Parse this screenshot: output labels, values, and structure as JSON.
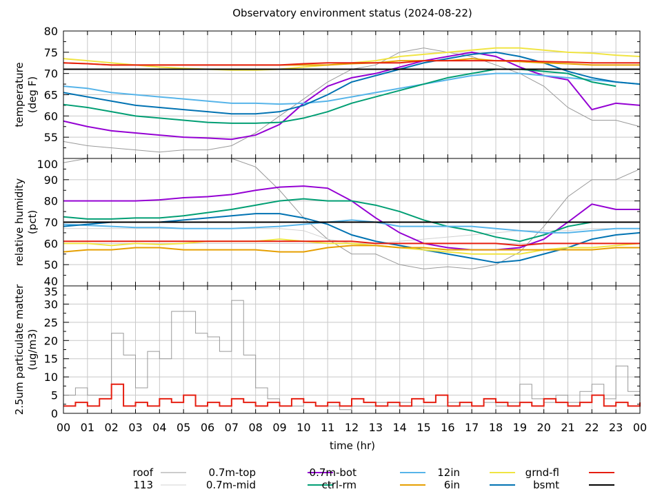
{
  "chart_data": [
    {
      "type": "line",
      "title": "Observatory environment status (2024-08-22)",
      "ylabel": [
        "temperature",
        "(deg F)"
      ],
      "ylim": [
        50,
        80
      ],
      "yticks": [
        55,
        60,
        65,
        70,
        75,
        80
      ],
      "x": [
        0,
        1,
        2,
        3,
        4,
        5,
        6,
        7,
        8,
        9,
        10,
        11,
        12,
        13,
        14,
        15,
        16,
        17,
        18,
        19,
        20,
        21,
        22,
        23,
        24
      ],
      "series": [
        {
          "name": "roof",
          "values": [
            54,
            53,
            52.5,
            52,
            51.5,
            52,
            52,
            53,
            56,
            60,
            64,
            68,
            71,
            72,
            75,
            76,
            75,
            74,
            72,
            70,
            67,
            62,
            59,
            59,
            57.5
          ]
        },
        {
          "name": "0.7m-top",
          "values": [
            58.8,
            57.5,
            56.5,
            56,
            55.5,
            55,
            54.8,
            54.5,
            55.5,
            58,
            63,
            67,
            69,
            70,
            71.5,
            73,
            74,
            75,
            74,
            71.5,
            69.5,
            68.5,
            61.5,
            63,
            62.5
          ]
        },
        {
          "name": "0.7m-bot",
          "values": [
            67,
            66.5,
            65.5,
            65,
            64.5,
            64,
            63.5,
            63,
            63,
            62.8,
            63,
            63.5,
            64.5,
            65.5,
            66.5,
            67.5,
            68.5,
            69.5,
            70,
            70,
            69.5,
            69,
            68.5,
            68,
            67.5
          ]
        },
        {
          "name": "0.7m-mid",
          "values": [
            62.7,
            62,
            61,
            60,
            59.5,
            59,
            58.5,
            58.3,
            58.3,
            58.5,
            59.5,
            61,
            63,
            64.5,
            66,
            67.5,
            69,
            70,
            71,
            71,
            70.5,
            70,
            68,
            67,
            null
          ]
        },
        {
          "name": "6in",
          "values": [
            65.5,
            64.5,
            63.5,
            62.5,
            62,
            61.5,
            61,
            60.5,
            60.5,
            61,
            62.5,
            65,
            68,
            69.5,
            71,
            72.5,
            73.5,
            74.5,
            75,
            74,
            72.5,
            70.5,
            69,
            68,
            67.5
          ]
        },
        {
          "name": "12in",
          "values": [
            73.5,
            73,
            72.5,
            72,
            71.5,
            71.2,
            71,
            70.8,
            70.8,
            71,
            71.5,
            72,
            72.5,
            73,
            74,
            74.5,
            75,
            75.5,
            76,
            76,
            75.5,
            75,
            74.8,
            74.3,
            74
          ]
        },
        {
          "name": "ctrl-rm",
          "values": [
            72.5,
            72.3,
            72,
            72,
            72,
            72,
            72,
            72,
            72,
            72,
            72,
            72,
            72.3,
            72.5,
            73,
            73,
            73,
            73.5,
            73,
            72.8,
            72.5,
            72.3,
            72,
            72,
            72
          ]
        },
        {
          "name": "grnd-fl",
          "values": [
            72.5,
            72.3,
            72,
            72,
            72,
            72,
            72,
            72,
            72,
            72,
            72.3,
            72.5,
            72.5,
            72.5,
            72.5,
            73,
            73,
            73,
            73,
            73,
            72.8,
            72.7,
            72.5,
            72.5,
            72.5
          ]
        },
        {
          "name": "bsmt",
          "values": [
            71,
            71,
            71,
            71,
            71,
            71,
            71,
            71,
            71,
            71,
            71,
            71,
            71,
            71,
            71,
            71,
            71,
            71,
            71,
            71,
            71,
            71,
            71,
            71,
            71
          ]
        }
      ]
    },
    {
      "type": "line",
      "ylabel": [
        "relative humidity",
        "(pct)"
      ],
      "ylim": [
        40,
        100
      ],
      "yticks": [
        40,
        50,
        60,
        70,
        80,
        90,
        100
      ],
      "x": [
        0,
        1,
        2,
        3,
        4,
        5,
        6,
        7,
        8,
        9,
        10,
        11,
        12,
        13,
        14,
        15,
        16,
        17,
        18,
        19,
        20,
        21,
        22,
        23,
        24
      ],
      "series": [
        {
          "name": "roof",
          "values": [
            98,
            100,
            100,
            100,
            100,
            100,
            100,
            100,
            96,
            85,
            72,
            62,
            55,
            55,
            50,
            48,
            49,
            48,
            50,
            56,
            68,
            82,
            90,
            90,
            95
          ]
        },
        {
          "name": "113",
          "values": [
            67,
            67,
            67,
            67,
            67,
            67,
            67,
            67,
            67,
            67,
            66,
            62,
            60,
            60,
            61,
            62,
            63,
            64,
            65,
            66,
            66,
            66,
            67,
            67,
            67
          ]
        },
        {
          "name": "0.7m-top",
          "values": [
            80,
            80,
            80,
            80,
            80.5,
            81.5,
            82,
            83,
            85,
            86.5,
            87,
            86,
            80,
            72,
            65,
            60,
            58,
            57,
            57,
            58,
            62,
            70,
            78.5,
            76,
            76
          ]
        },
        {
          "name": "0.7m-mid",
          "values": [
            72.5,
            71.5,
            71.5,
            72,
            72,
            73,
            74.5,
            76,
            78,
            80,
            81,
            80,
            80,
            78,
            75,
            71,
            68,
            66,
            63,
            61,
            64,
            68,
            70,
            70,
            70
          ]
        },
        {
          "name": "0.7m-bot",
          "values": [
            69,
            68.5,
            68,
            67.5,
            67.5,
            67,
            67,
            67,
            67.5,
            68,
            69,
            70,
            71,
            70,
            68,
            68,
            68,
            68,
            67,
            66,
            65,
            65,
            66,
            67,
            67
          ]
        },
        {
          "name": "6in",
          "values": [
            68,
            69,
            70,
            70,
            70,
            71,
            72,
            73,
            74,
            74,
            72,
            69,
            64,
            61,
            59,
            57,
            55,
            53,
            51,
            52,
            55,
            58,
            62,
            64,
            65
          ]
        },
        {
          "name": "12in",
          "values": [
            60,
            60,
            59,
            60,
            59.5,
            60,
            61,
            61,
            61,
            62,
            61,
            60,
            60,
            59,
            58,
            57,
            56,
            55,
            55,
            55,
            57,
            58,
            58,
            59,
            60
          ]
        },
        {
          "name": "ctrl-rm",
          "values": [
            56,
            57,
            57,
            58,
            58,
            57,
            57,
            57,
            57,
            56,
            56,
            58,
            59,
            59,
            58,
            58,
            57,
            57,
            57,
            57,
            57,
            57,
            57,
            58,
            58
          ]
        },
        {
          "name": "grnd-fl",
          "values": [
            61,
            61,
            61,
            61,
            61,
            61,
            61,
            61,
            61,
            61,
            61,
            61,
            61,
            60,
            60,
            60,
            60,
            60,
            60,
            59,
            60,
            60,
            60,
            60,
            60
          ]
        },
        {
          "name": "bsmt",
          "values": [
            70,
            70,
            70,
            70,
            70,
            70,
            70,
            70,
            70,
            70,
            70,
            70,
            70,
            70,
            70,
            70,
            70,
            70,
            70,
            70,
            70,
            70,
            70,
            70,
            70
          ]
        }
      ]
    },
    {
      "type": "line",
      "ylabel": [
        "2.5um particulate matter",
        "(ug/m3)"
      ],
      "ylim": [
        0,
        35
      ],
      "yticks": [
        0,
        5,
        10,
        15,
        20,
        25,
        30,
        35
      ],
      "xlabel": "time (hr)",
      "xticklabels": [
        "00",
        "01",
        "02",
        "03",
        "04",
        "05",
        "06",
        "07",
        "08",
        "09",
        "10",
        "11",
        "12",
        "13",
        "14",
        "15",
        "16",
        "17",
        "18",
        "19",
        "20",
        "21",
        "22",
        "23",
        "00"
      ],
      "x": [
        0,
        0.5,
        1,
        1.5,
        2,
        2.5,
        3,
        3.5,
        4,
        4.5,
        5,
        5.5,
        6,
        6.5,
        7,
        7.5,
        8,
        8.5,
        9,
        9.5,
        10,
        10.5,
        11,
        11.5,
        12,
        12.5,
        13,
        13.5,
        14,
        14.5,
        15,
        15.5,
        16,
        16.5,
        17,
        17.5,
        18,
        18.5,
        19,
        19.5,
        20,
        20.5,
        21,
        21.5,
        22,
        22.5,
        23,
        23.5,
        24
      ],
      "series": [
        {
          "name": "roof",
          "step": true,
          "values": [
            5,
            7,
            5,
            5,
            22,
            16,
            7,
            17,
            15,
            28,
            28,
            22,
            21,
            17,
            31,
            16,
            7,
            4,
            2,
            2,
            3,
            2,
            2,
            1,
            2,
            2,
            3,
            2,
            3,
            2,
            2,
            2,
            3,
            2,
            2,
            3,
            2,
            3,
            8,
            4,
            3,
            5,
            3,
            6,
            8,
            4,
            13,
            6,
            6
          ]
        },
        {
          "name": "grnd-fl",
          "step": true,
          "values": [
            2,
            3,
            2,
            4,
            8,
            2,
            3,
            2,
            4,
            3,
            5,
            2,
            3,
            2,
            4,
            3,
            2,
            3,
            2,
            4,
            3,
            2,
            3,
            2,
            4,
            3,
            2,
            3,
            2,
            4,
            3,
            5,
            2,
            3,
            2,
            4,
            3,
            2,
            3,
            2,
            4,
            3,
            2,
            3,
            5,
            2,
            3,
            2,
            3
          ]
        }
      ]
    }
  ],
  "legend": [
    {
      "name": "roof",
      "color": "#999999"
    },
    {
      "name": "113",
      "color": "#d0d0d0"
    },
    {
      "name": "0.7m-top",
      "color": "#9400d3"
    },
    {
      "name": "0.7m-mid",
      "color": "#009e73"
    },
    {
      "name": "0.7m-bot",
      "color": "#56b4e9"
    },
    {
      "name": "ctrl-rm",
      "color": "#e69f00"
    },
    {
      "name": "12in",
      "color": "#f0e442"
    },
    {
      "name": "6in",
      "color": "#0072b2"
    },
    {
      "name": "grnd-fl",
      "color": "#e51e10"
    },
    {
      "name": "bsmt",
      "color": "#000000"
    }
  ]
}
